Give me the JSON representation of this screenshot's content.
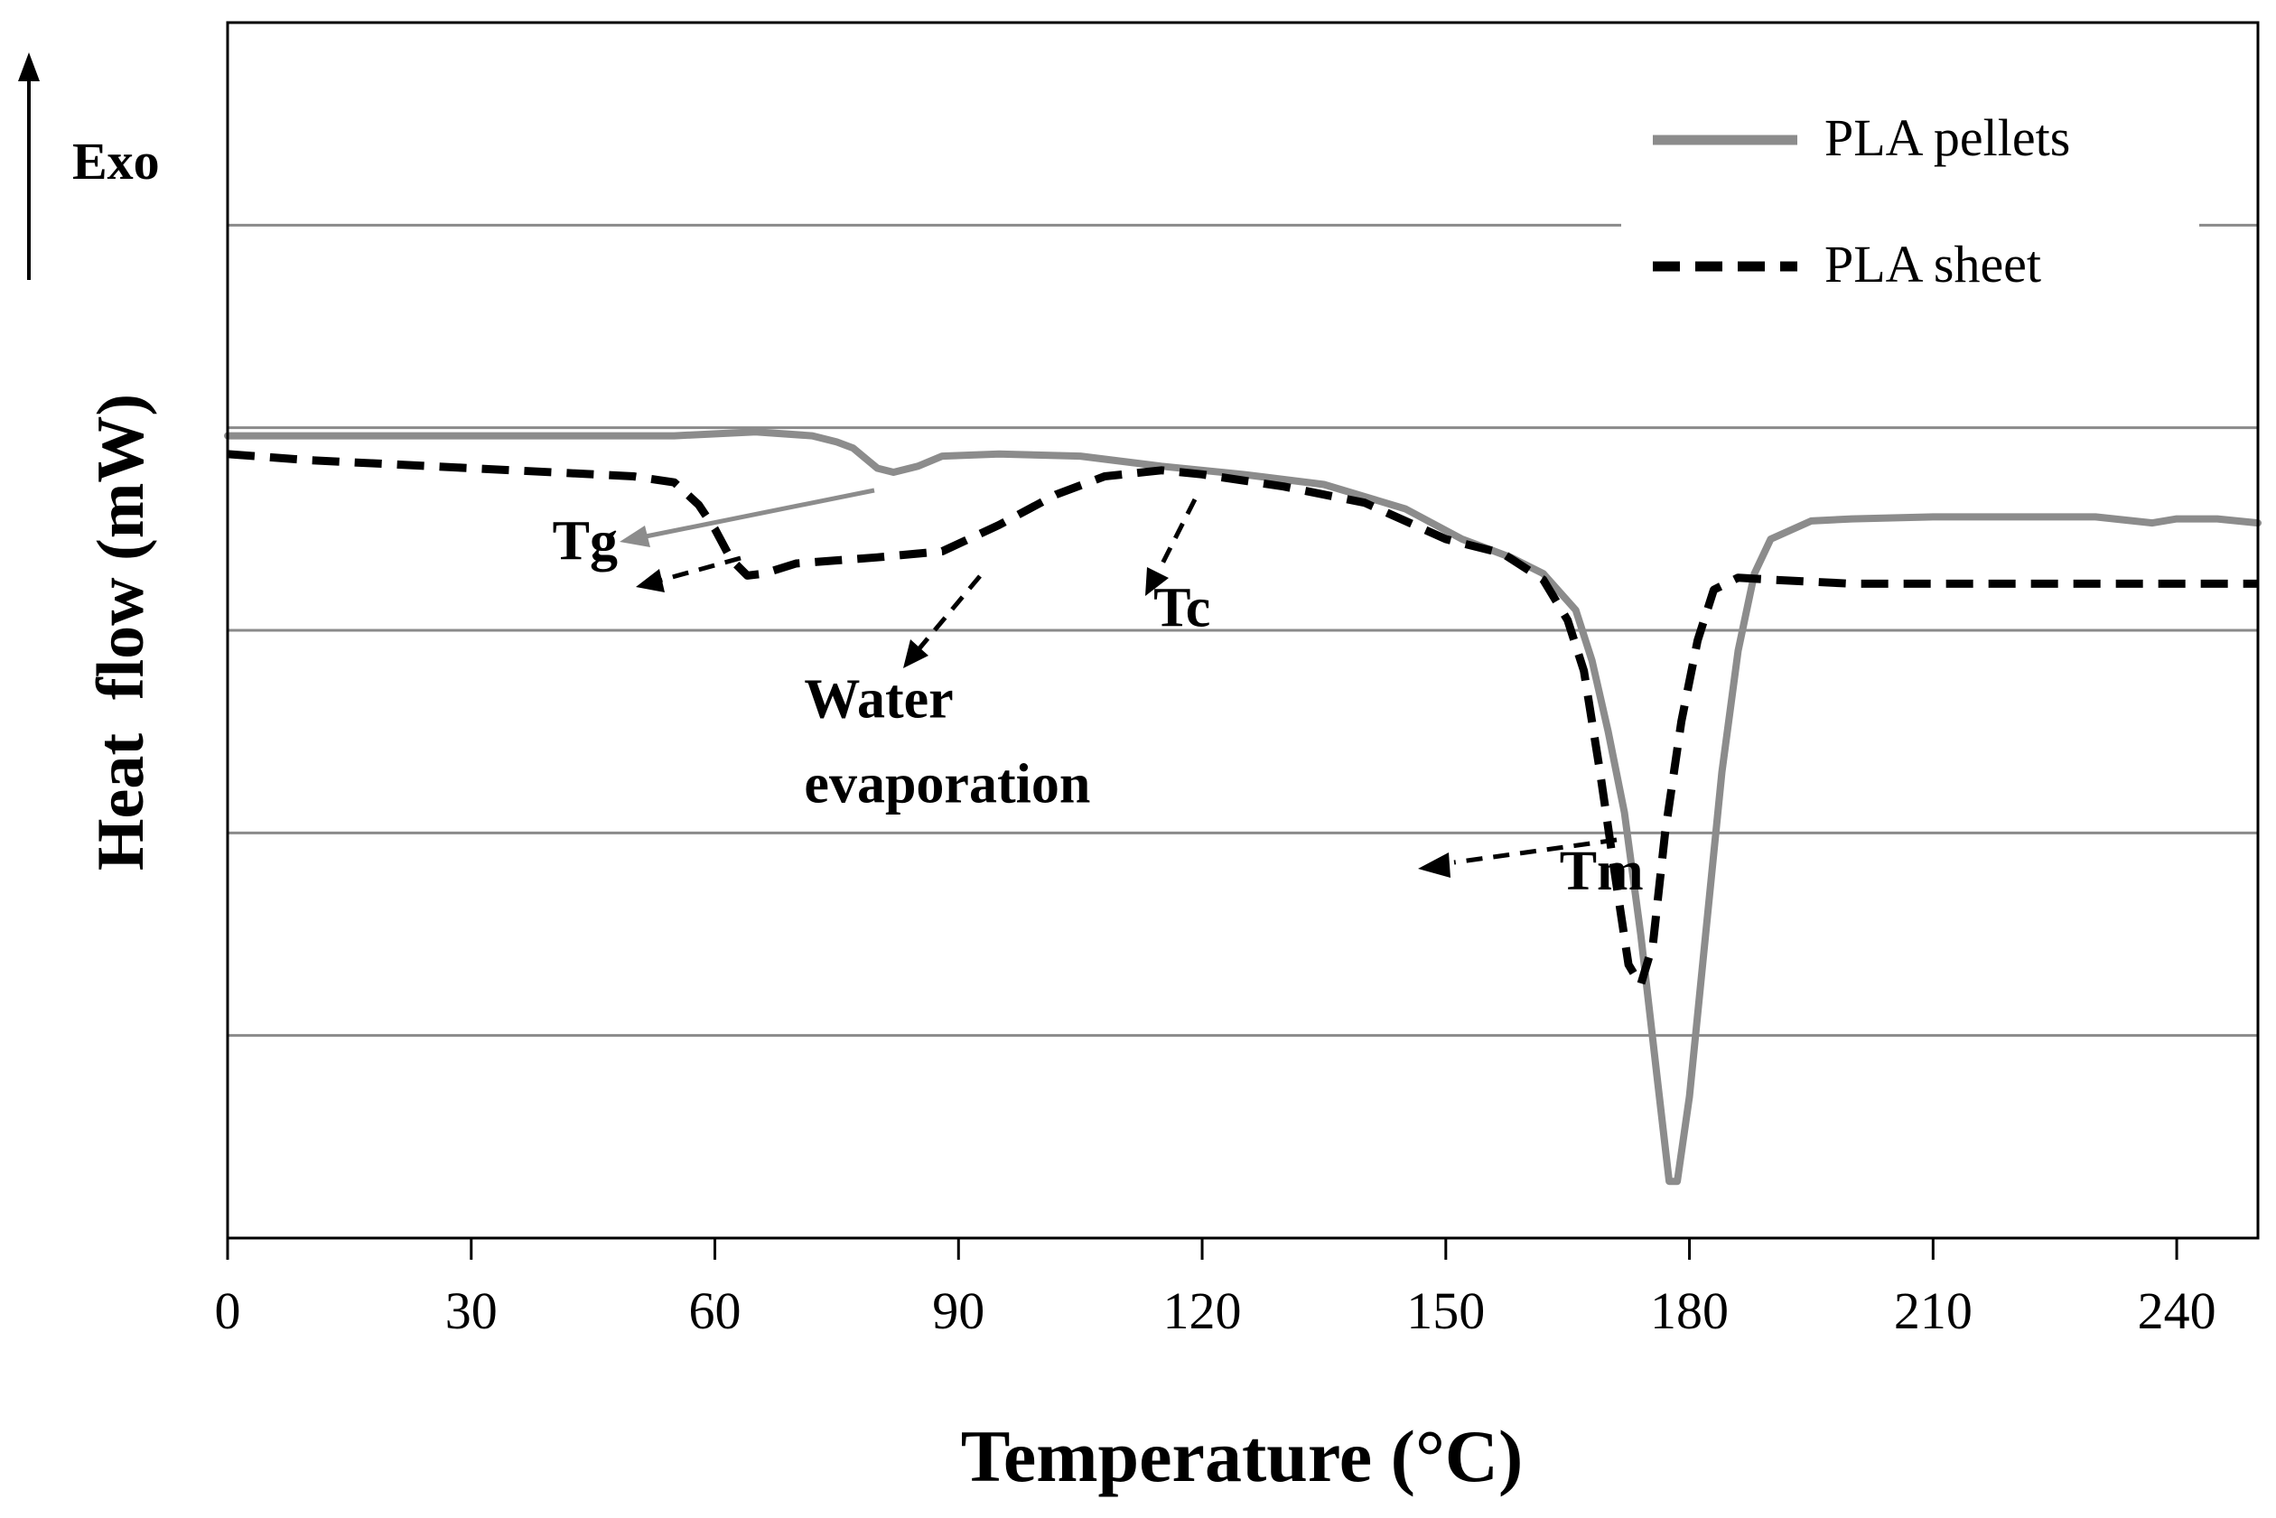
{
  "chart_data": {
    "type": "line",
    "title": "",
    "xlabel": "Temperature (°C)",
    "ylabel": "Heat  flow (mW)",
    "exo_label": "Exo",
    "xlim": [
      0,
      250
    ],
    "ylim": [
      0,
      6
    ],
    "x_ticks": [
      0,
      30,
      60,
      90,
      120,
      150,
      180,
      210,
      240
    ],
    "x_tick_labels": [
      "0",
      "30",
      "60",
      "90",
      "120",
      "150",
      "180",
      "210",
      "240"
    ],
    "y_gridlines": [
      1,
      2,
      3,
      4,
      5
    ],
    "y_tick_labels_visible": false,
    "legend_position": "top-right",
    "series": [
      {
        "name": "PLA pellets",
        "style": "solid",
        "color": "#8c8c8c",
        "points": [
          [
            0,
            3.96
          ],
          [
            20,
            3.96
          ],
          [
            40,
            3.96
          ],
          [
            55,
            3.96
          ],
          [
            65,
            3.98
          ],
          [
            72,
            3.96
          ],
          [
            75,
            3.93
          ],
          [
            77,
            3.9
          ],
          [
            80,
            3.8
          ],
          [
            82,
            3.78
          ],
          [
            85,
            3.81
          ],
          [
            88,
            3.86
          ],
          [
            95,
            3.87
          ],
          [
            105,
            3.86
          ],
          [
            115,
            3.81
          ],
          [
            125,
            3.77
          ],
          [
            135,
            3.72
          ],
          [
            145,
            3.6
          ],
          [
            152,
            3.45
          ],
          [
            158,
            3.36
          ],
          [
            162,
            3.28
          ],
          [
            166,
            3.1
          ],
          [
            168,
            2.85
          ],
          [
            170,
            2.5
          ],
          [
            172,
            2.1
          ],
          [
            174,
            1.5
          ],
          [
            176,
            0.8
          ],
          [
            177.5,
            0.28
          ],
          [
            178.5,
            0.28
          ],
          [
            180,
            0.7
          ],
          [
            182,
            1.5
          ],
          [
            184,
            2.3
          ],
          [
            186,
            2.9
          ],
          [
            188,
            3.28
          ],
          [
            190,
            3.45
          ],
          [
            195,
            3.54
          ],
          [
            200,
            3.55
          ],
          [
            210,
            3.56
          ],
          [
            220,
            3.56
          ],
          [
            230,
            3.56
          ],
          [
            237,
            3.53
          ],
          [
            240,
            3.55
          ],
          [
            245,
            3.55
          ],
          [
            250,
            3.53
          ]
        ]
      },
      {
        "name": "PLA sheet",
        "style": "dashed",
        "color": "#000000",
        "points": [
          [
            0,
            3.87
          ],
          [
            10,
            3.84
          ],
          [
            20,
            3.82
          ],
          [
            30,
            3.8
          ],
          [
            40,
            3.78
          ],
          [
            50,
            3.76
          ],
          [
            55,
            3.73
          ],
          [
            58,
            3.62
          ],
          [
            60,
            3.5
          ],
          [
            62,
            3.35
          ],
          [
            64,
            3.27
          ],
          [
            66,
            3.28
          ],
          [
            70,
            3.33
          ],
          [
            80,
            3.36
          ],
          [
            88,
            3.39
          ],
          [
            95,
            3.52
          ],
          [
            102,
            3.67
          ],
          [
            108,
            3.76
          ],
          [
            115,
            3.79
          ],
          [
            120,
            3.77
          ],
          [
            130,
            3.71
          ],
          [
            140,
            3.63
          ],
          [
            150,
            3.45
          ],
          [
            157,
            3.38
          ],
          [
            162,
            3.25
          ],
          [
            165,
            3.05
          ],
          [
            167,
            2.8
          ],
          [
            169,
            2.3
          ],
          [
            171,
            1.75
          ],
          [
            172.5,
            1.35
          ],
          [
            174,
            1.25
          ],
          [
            175.5,
            1.45
          ],
          [
            177,
            2.0
          ],
          [
            179,
            2.55
          ],
          [
            181,
            2.95
          ],
          [
            183,
            3.2
          ],
          [
            186,
            3.26
          ],
          [
            190,
            3.25
          ],
          [
            200,
            3.23
          ],
          [
            210,
            3.23
          ],
          [
            220,
            3.23
          ],
          [
            230,
            3.23
          ],
          [
            240,
            3.23
          ],
          [
            250,
            3.23
          ]
        ]
      }
    ],
    "annotations": [
      {
        "text": "Tg",
        "x": 40,
        "y": 3.35
      },
      {
        "text": "Tc",
        "x": 114,
        "y": 3.02
      },
      {
        "text": "Water",
        "x": 71,
        "y": 2.57
      },
      {
        "text": "evaporation",
        "x": 71,
        "y": 2.15
      },
      {
        "text": "Tm",
        "x": 164,
        "y": 1.72
      }
    ]
  }
}
